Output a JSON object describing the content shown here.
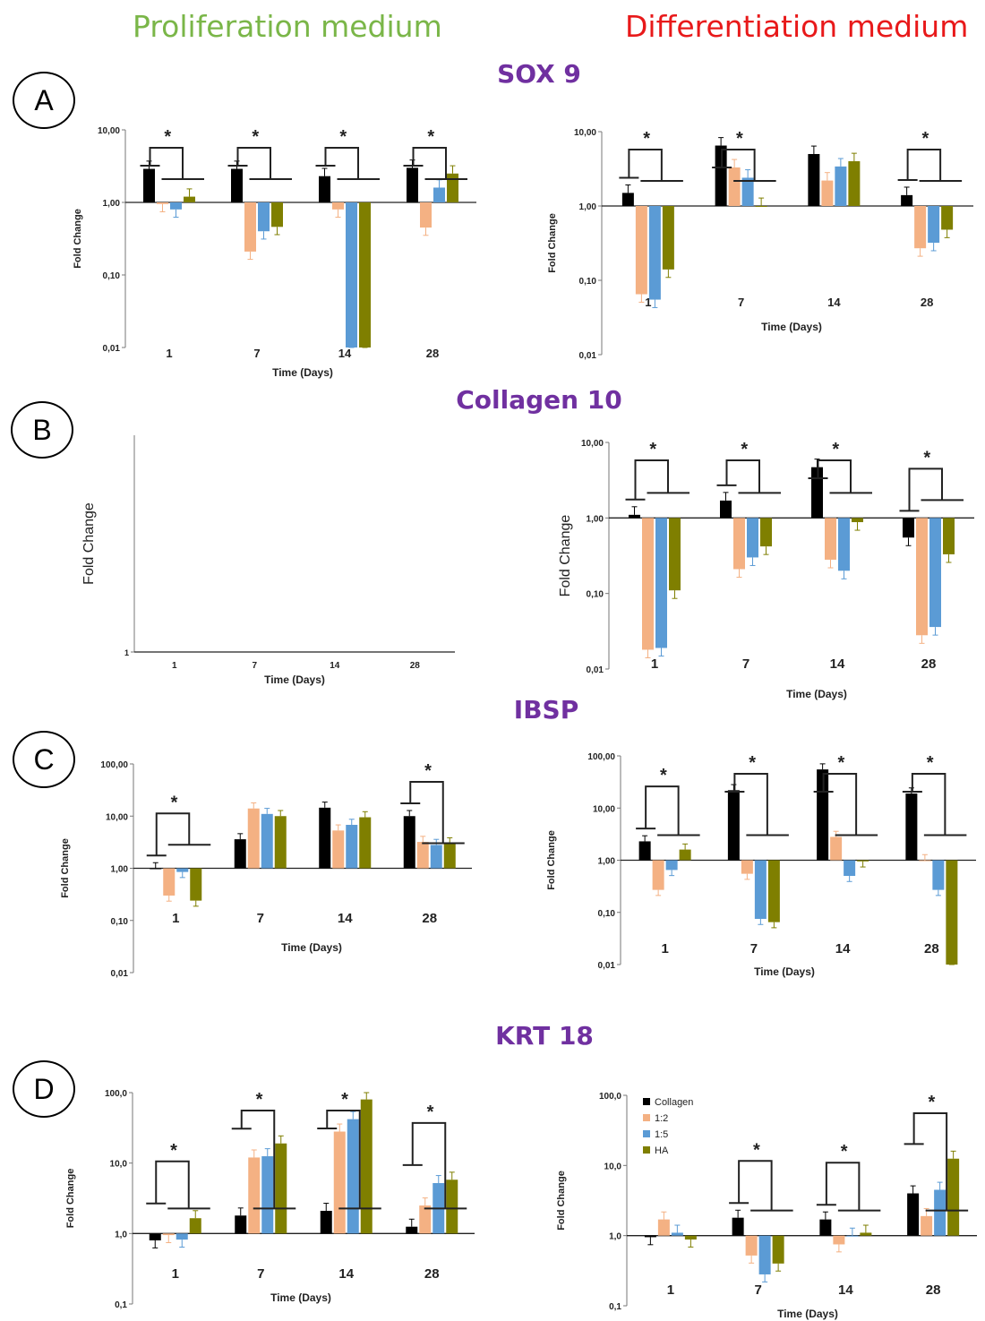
{
  "column_titles": {
    "proliferation": {
      "text": "Proliferation medium",
      "color": "#7ab648"
    },
    "differentiation": {
      "text": "Differentiation medium",
      "color": "#e8191a"
    }
  },
  "gene_title_color": "#7030a0",
  "panels": [
    {
      "letter": "A",
      "gene": "SOX 9"
    },
    {
      "letter": "B",
      "gene": "Collagen 10"
    },
    {
      "letter": "C",
      "gene": "IBSP"
    },
    {
      "letter": "D",
      "gene": "KRT 18"
    }
  ],
  "series_colors": {
    "Collagen": "#000000",
    "1:2": "#f4b183",
    "1:5": "#5b9bd5",
    "HA": "#7f7f00"
  },
  "legend": {
    "entries": [
      "Collagen",
      "1:2",
      "1:5",
      "HA"
    ],
    "placement": "top-left"
  },
  "chart_data": [
    {
      "id": "A-prolif",
      "type": "bar",
      "scale": "log",
      "title": "",
      "xlabel": "Time (Days)",
      "ylabel": "Fold Change",
      "ylim": [
        0.01,
        10
      ],
      "yticks": [
        "0,01",
        "0,10",
        "1,00",
        "10,00"
      ],
      "categories": [
        "1",
        "7",
        "14",
        "28"
      ],
      "series": [
        {
          "name": "Collagen",
          "values": [
            2.9,
            2.9,
            2.3,
            3.0
          ]
        },
        {
          "name": "1:2",
          "values": [
            0.95,
            0.21,
            0.8,
            0.45
          ]
        },
        {
          "name": "1:5",
          "values": [
            0.8,
            0.4,
            0.01,
            1.6
          ]
        },
        {
          "name": "HA",
          "values": [
            1.2,
            0.46,
            0.01,
            2.5
          ]
        }
      ],
      "significance": [
        "*",
        "*",
        "*",
        "*"
      ]
    },
    {
      "id": "A-diff",
      "type": "bar",
      "scale": "log",
      "title": "",
      "xlabel": "Time (Days)",
      "ylabel": "Fold Change",
      "ylim": [
        0.01,
        10
      ],
      "yticks": [
        "0,01",
        "0,10",
        "1,00",
        "10,00"
      ],
      "categories": [
        "1",
        "7",
        "14",
        "28"
      ],
      "series": [
        {
          "name": "Collagen",
          "values": [
            1.5,
            6.5,
            5.0,
            1.4
          ]
        },
        {
          "name": "1:2",
          "values": [
            0.065,
            3.3,
            2.2,
            0.27
          ]
        },
        {
          "name": "1:5",
          "values": [
            0.055,
            2.4,
            3.4,
            0.32
          ]
        },
        {
          "name": "HA",
          "values": [
            0.14,
            1.0,
            4.0,
            0.48
          ]
        }
      ],
      "significance": [
        "*",
        "*",
        "",
        "*"
      ]
    },
    {
      "id": "B-prolif",
      "type": "bar",
      "scale": "log",
      "title": "",
      "xlabel": "Time  (Days)",
      "ylabel": "Fold Change",
      "ylim": [
        1,
        10
      ],
      "yticks": [
        "1"
      ],
      "categories": [
        "1",
        "7",
        "14",
        "28"
      ],
      "series": [],
      "significance": []
    },
    {
      "id": "B-diff",
      "type": "bar",
      "scale": "log",
      "title": "",
      "xlabel": "Time  (Days)",
      "ylabel": "Fold Change",
      "ylim": [
        0.01,
        10
      ],
      "yticks": [
        "0,01",
        "0,10",
        "1,00",
        "10,00"
      ],
      "categories": [
        "1",
        "7",
        "14",
        "28"
      ],
      "series": [
        {
          "name": "Collagen",
          "values": [
            1.1,
            1.7,
            4.7,
            0.55
          ]
        },
        {
          "name": "1:2",
          "values": [
            0.018,
            0.21,
            0.28,
            0.028
          ]
        },
        {
          "name": "1:5",
          "values": [
            0.019,
            0.3,
            0.2,
            0.036
          ]
        },
        {
          "name": "HA",
          "values": [
            0.11,
            0.42,
            0.88,
            0.33
          ]
        }
      ],
      "significance": [
        "*",
        "*",
        "*",
        "*"
      ]
    },
    {
      "id": "C-prolif",
      "type": "bar",
      "scale": "log",
      "title": "",
      "xlabel": "Time (Days)",
      "ylabel": "Fold Change",
      "ylim": [
        0.01,
        100
      ],
      "yticks": [
        "0,01",
        "0,10",
        "1,00",
        "10,00",
        "100,00"
      ],
      "categories": [
        "1",
        "7",
        "14",
        "28"
      ],
      "series": [
        {
          "name": "Collagen",
          "values": [
            1.0,
            3.6,
            14.5,
            10.0
          ]
        },
        {
          "name": "1:2",
          "values": [
            0.3,
            14,
            5.3,
            3.2
          ]
        },
        {
          "name": "1:5",
          "values": [
            0.85,
            11,
            6.8,
            2.8
          ]
        },
        {
          "name": "HA",
          "values": [
            0.24,
            10,
            9.5,
            3.0
          ]
        }
      ],
      "significance": [
        "*",
        "",
        "",
        "*"
      ]
    },
    {
      "id": "C-diff",
      "type": "bar",
      "scale": "log",
      "title": "",
      "xlabel": "Time (Days)",
      "ylabel": "Fold Change",
      "ylim": [
        0.01,
        100
      ],
      "yticks": [
        "0,01",
        "0,10",
        "1,00",
        "10,00",
        "100,00"
      ],
      "categories": [
        "1",
        "7",
        "14",
        "28"
      ],
      "series": [
        {
          "name": "Collagen",
          "values": [
            2.3,
            22,
            55,
            19
          ]
        },
        {
          "name": "1:2",
          "values": [
            0.27,
            0.55,
            2.8,
            1.0
          ]
        },
        {
          "name": "1:5",
          "values": [
            0.65,
            0.075,
            0.5,
            0.27
          ]
        },
        {
          "name": "HA",
          "values": [
            1.6,
            0.065,
            0.95,
            0.01
          ]
        }
      ],
      "significance": [
        "*",
        "*",
        "*",
        "*"
      ]
    },
    {
      "id": "D-prolif",
      "type": "bar",
      "scale": "log",
      "title": "",
      "xlabel": "Time (Days)",
      "ylabel": "Fold Change",
      "ylim": [
        0.1,
        100
      ],
      "yticks": [
        "0,1",
        "1,0",
        "10,0",
        "100,0"
      ],
      "categories": [
        "1",
        "7",
        "14",
        "28"
      ],
      "series": [
        {
          "name": "Collagen",
          "values": [
            0.8,
            1.8,
            2.1,
            1.25
          ]
        },
        {
          "name": "1:2",
          "values": [
            0.95,
            12,
            28,
            2.5
          ]
        },
        {
          "name": "1:5",
          "values": [
            0.82,
            12.5,
            42,
            5.2
          ]
        },
        {
          "name": "HA",
          "values": [
            1.65,
            19,
            80,
            5.8
          ]
        }
      ],
      "significance": [
        "*",
        "*",
        "*",
        "*"
      ]
    },
    {
      "id": "D-diff",
      "type": "bar",
      "scale": "log",
      "title": "",
      "xlabel": "Time (Days)",
      "ylabel": "Fold Change",
      "ylim": [
        0.1,
        100
      ],
      "yticks": [
        "0,1",
        "1,0",
        "10,0",
        "100,0"
      ],
      "categories": [
        "1",
        "7",
        "14",
        "28"
      ],
      "series": [
        {
          "name": "Collagen",
          "values": [
            0.95,
            1.8,
            1.7,
            4.0
          ]
        },
        {
          "name": "1:2",
          "values": [
            1.7,
            0.52,
            0.75,
            1.9
          ]
        },
        {
          "name": "1:5",
          "values": [
            1.1,
            0.28,
            1.0,
            4.5
          ]
        },
        {
          "name": "HA",
          "values": [
            0.88,
            0.4,
            1.1,
            12.5
          ]
        }
      ],
      "significance": [
        "",
        "*",
        "*",
        "*"
      ]
    }
  ]
}
